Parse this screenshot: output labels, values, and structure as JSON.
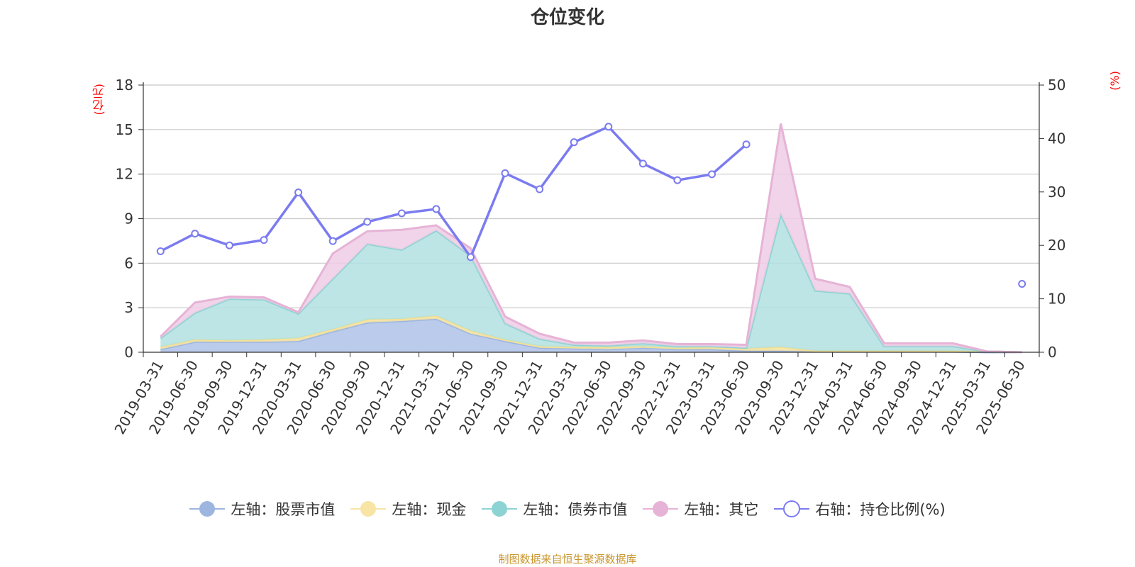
{
  "title": "仓位变化",
  "left_axis_unit": "(亿元)",
  "right_axis_unit": "(%)",
  "source": "制图数据来自恒生聚源数据库",
  "legend": [
    {
      "label": "左轴：股票市值",
      "color": "#9db6e0",
      "marker": "filled-circle"
    },
    {
      "label": "左轴：现金",
      "color": "#f8e4a4",
      "marker": "filled-circle"
    },
    {
      "label": "左轴：债券市值",
      "color": "#8ed3d3",
      "marker": "filled-circle"
    },
    {
      "label": "左轴：其它",
      "color": "#e6b3d6",
      "marker": "filled-circle"
    },
    {
      "label": "右轴：持仓比例(%)",
      "color": "#7b7bf0",
      "marker": "hollow-circle"
    }
  ],
  "chart_data": {
    "type": "area",
    "stacked": true,
    "title": "仓位变化",
    "categories": [
      "2019-03-31",
      "2019-06-30",
      "2019-09-30",
      "2019-12-31",
      "2020-03-31",
      "2020-06-30",
      "2020-09-30",
      "2020-12-31",
      "2021-03-31",
      "2021-06-30",
      "2021-09-30",
      "2021-12-31",
      "2022-03-31",
      "2022-06-30",
      "2022-09-30",
      "2022-12-31",
      "2023-03-31",
      "2023-06-30",
      "2023-09-30",
      "2023-12-31",
      "2024-03-31",
      "2024-06-30",
      "2024-09-30",
      "2024-12-31",
      "2025-03-31",
      "2025-06-30"
    ],
    "ylim_left": [
      0,
      18
    ],
    "yticks_left": [
      0,
      3,
      6,
      9,
      12,
      15,
      18
    ],
    "ylim_right": [
      0,
      50
    ],
    "yticks_right": [
      0,
      10,
      20,
      30,
      40,
      50
    ],
    "grid": true,
    "legend_position": "bottom",
    "series": [
      {
        "name": "左轴：股票市值",
        "axis": "left",
        "color": "#aec2e8",
        "values": [
          0.2,
          0.7,
          0.7,
          0.7,
          0.75,
          1.4,
          2.0,
          2.1,
          2.25,
          1.25,
          0.75,
          0.3,
          0.25,
          0.2,
          0.3,
          0.2,
          0.2,
          0.1,
          0.1,
          0.05,
          0.05,
          0.05,
          0.05,
          0.05,
          0.0,
          0.0
        ]
      },
      {
        "name": "左轴：现金",
        "axis": "left",
        "color": "#f8e4a4",
        "values": [
          0.15,
          0.15,
          0.1,
          0.15,
          0.2,
          0.15,
          0.2,
          0.15,
          0.2,
          0.2,
          0.1,
          0.1,
          0.1,
          0.15,
          0.1,
          0.1,
          0.15,
          0.15,
          0.25,
          0.05,
          0.05,
          0.05,
          0.05,
          0.05,
          0.05,
          0.0
        ]
      },
      {
        "name": "左轴：债券市值",
        "axis": "left",
        "color": "#b2e1e1",
        "values": [
          0.6,
          1.8,
          2.8,
          2.7,
          1.65,
          3.4,
          5.1,
          4.65,
          5.75,
          5.05,
          1.1,
          0.5,
          0.15,
          0.1,
          0.2,
          0.1,
          0.05,
          0.05,
          8.95,
          4.05,
          3.85,
          0.3,
          0.3,
          0.3,
          0.0,
          0.0
        ]
      },
      {
        "name": "左轴：其它",
        "axis": "left",
        "color": "#efcde5",
        "values": [
          0.1,
          0.7,
          0.15,
          0.15,
          0.1,
          1.7,
          0.85,
          1.35,
          0.35,
          0.5,
          0.45,
          0.35,
          0.15,
          0.2,
          0.2,
          0.15,
          0.15,
          0.2,
          6.1,
          0.8,
          0.45,
          0.2,
          0.2,
          0.2,
          0.0,
          0.0
        ]
      },
      {
        "name": "右轴：持仓比例(%)",
        "axis": "right",
        "color": "#7b7bf0",
        "type": "line",
        "values": [
          18.9,
          22.2,
          20.0,
          21.0,
          29.9,
          20.8,
          24.4,
          26.0,
          26.8,
          17.8,
          33.5,
          30.5,
          39.3,
          42.2,
          35.3,
          32.2,
          33.3,
          38.9,
          null,
          null,
          null,
          null,
          null,
          null,
          null,
          12.8
        ]
      }
    ]
  }
}
